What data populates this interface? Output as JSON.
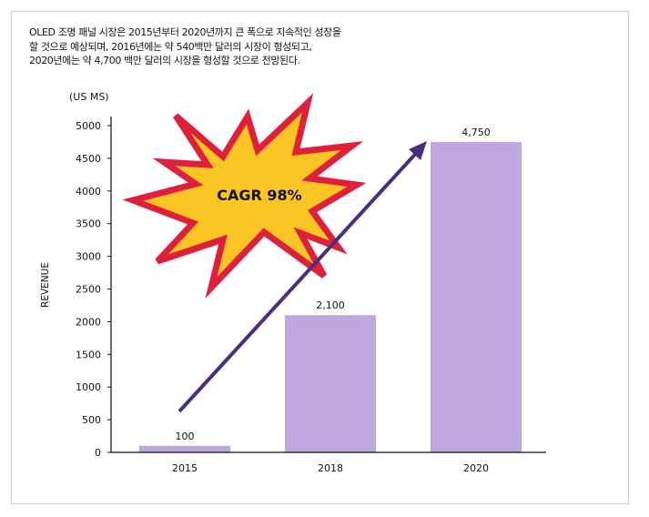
{
  "description": [
    "OLED 조명 패널 시장은 2015년부터 2020년까지 큰 폭으로 지속적인 성장을",
    "할 것으로 예상되며, 2016년에는 약 540백만 달러의 시장이 형성되고,",
    "2020년에는 약 4,700 백만 달러의 시장을 형성할 것으로 전망된다."
  ],
  "callout": {
    "text": "CAGR 98%",
    "fill": "#f9c424",
    "stroke": "#e0203a"
  },
  "chart_data": {
    "type": "bar",
    "categories": [
      "2015",
      "2018",
      "2020"
    ],
    "values": [
      100,
      2100,
      4750
    ],
    "data_labels": [
      "100",
      "2,100",
      "4,750"
    ],
    "unit_label": "(US MS)",
    "ylabel": "REVENUE",
    "xlabel": "",
    "ylim": [
      0,
      5000
    ],
    "yticks": [
      0,
      500,
      1000,
      1500,
      2000,
      2500,
      3000,
      3500,
      4000,
      4500,
      5000
    ],
    "bar_color": "#bea6de",
    "arrow_color": "#4b2d7f",
    "grid": false
  }
}
